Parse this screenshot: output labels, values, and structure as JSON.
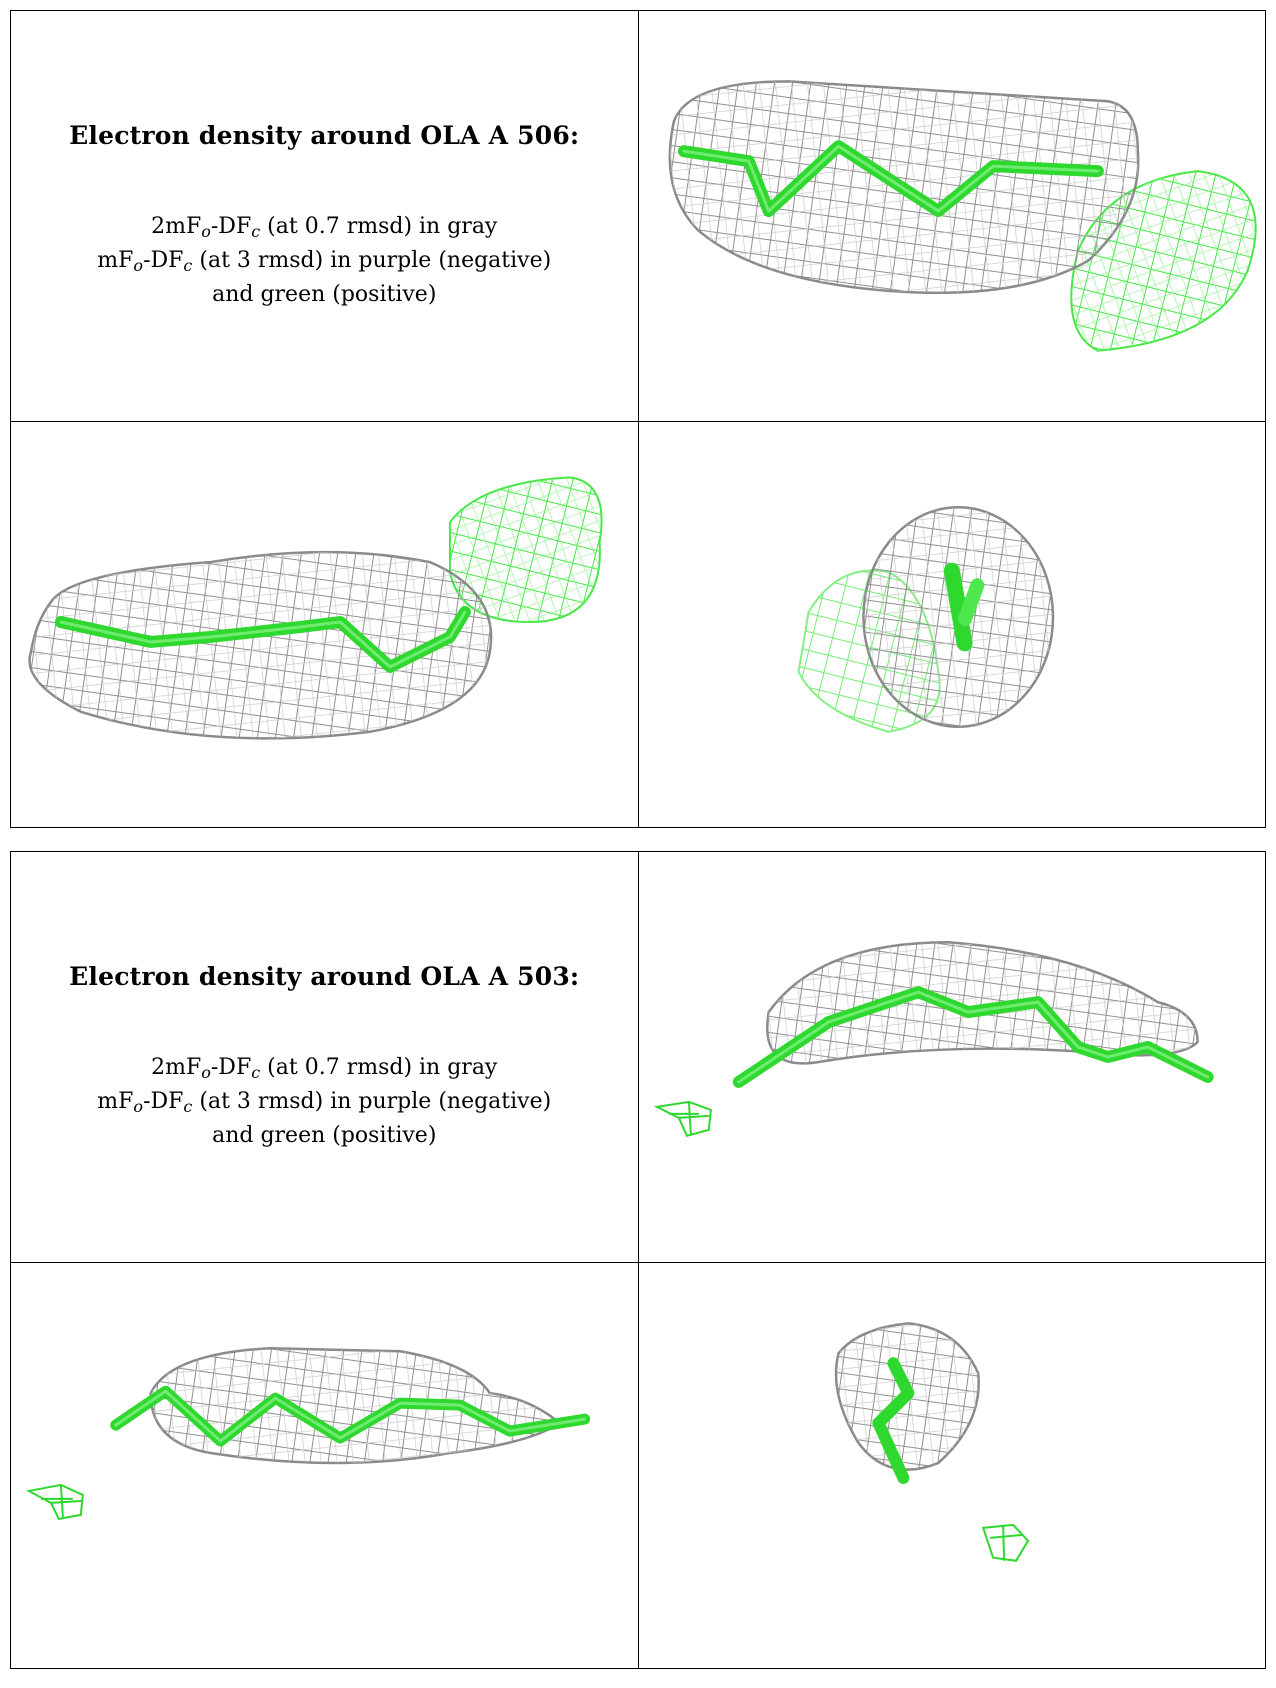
{
  "panels": [
    {
      "title": "Electron density around OLA A 506:",
      "map_2fofc": {
        "prefix": "2mF",
        "sub_o": "o",
        "mid": "-DF",
        "sub_c": "c",
        "suffix": " (at 0.7 rmsd) in gray"
      },
      "map_fofc": {
        "prefix": "mF",
        "sub_o": "o",
        "mid": "-DF",
        "sub_c": "c",
        "suffix": " (at 3 rmsd) in purple (negative)"
      },
      "map_fofc_cont": "and green (positive)"
    },
    {
      "title": "Electron density around OLA A 503:",
      "map_2fofc": {
        "prefix": "2mF",
        "sub_o": "o",
        "mid": "-DF",
        "sub_c": "c",
        "suffix": " (at 0.7 rmsd) in gray"
      },
      "map_fofc": {
        "prefix": "mF",
        "sub_o": "o",
        "mid": "-DF",
        "sub_c": "c",
        "suffix": " (at 3 rmsd) in purple (negative)"
      },
      "map_fofc_cont": "and green (positive)"
    }
  ],
  "colors": {
    "mesh_gray": "#8a8a8a",
    "mesh_light": "#c4c4c4",
    "ligand_green": "#3be03b",
    "positive_green": "#4bea4b"
  }
}
